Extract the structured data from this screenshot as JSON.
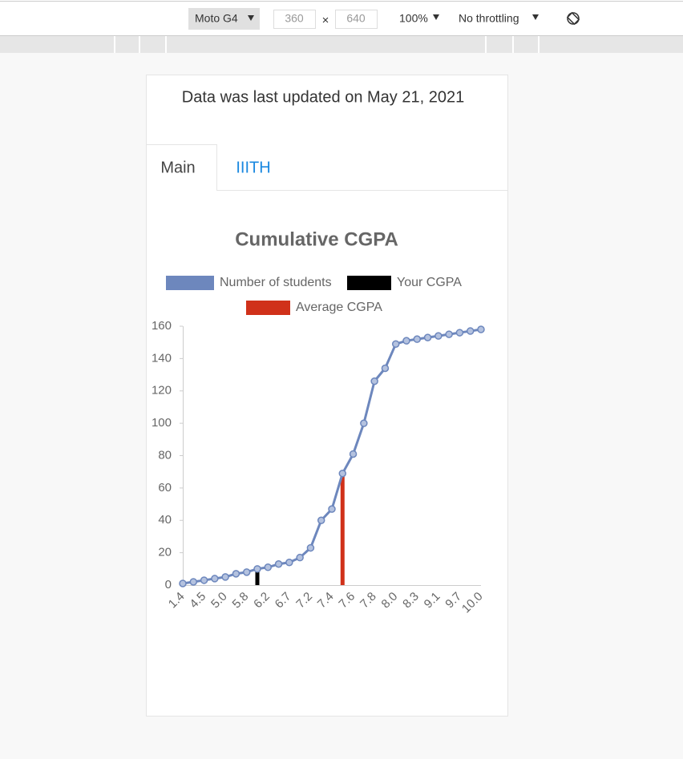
{
  "toolbar": {
    "device": "Moto G4",
    "width": "360",
    "times": "×",
    "height": "640",
    "zoom": "100%",
    "throttling": "No throttling"
  },
  "header": "Data was last updated on May 21, 2021",
  "tabs": [
    "Main",
    "IIITH"
  ],
  "chart_data": {
    "type": "line",
    "title": "Cumulative CGPA",
    "categories": [
      "1.4",
      null,
      "4.5",
      null,
      "5.0",
      null,
      "5.8",
      null,
      "6.2",
      null,
      "6.7",
      null,
      "7.2",
      null,
      "7.4",
      null,
      "7.6",
      null,
      "7.8",
      null,
      "8.0",
      null,
      "8.3",
      null,
      "9.1",
      null,
      "9.7",
      null,
      "10.0"
    ],
    "series": [
      {
        "name": "Number of students",
        "color": "#6d87bd",
        "type": "line",
        "values": [
          1,
          2,
          3,
          4,
          5,
          7,
          8,
          10,
          11,
          13,
          14,
          17,
          23,
          40,
          47,
          69,
          81,
          100,
          126,
          134,
          149,
          151,
          152,
          153,
          154,
          155,
          156,
          157,
          158
        ]
      },
      {
        "name": "Your CGPA",
        "color": "#000000",
        "type": "bar",
        "values": [
          null,
          null,
          null,
          null,
          null,
          null,
          null,
          9,
          null,
          null,
          null,
          null,
          null,
          null,
          null,
          null,
          null,
          null,
          null,
          null,
          null,
          null,
          null,
          null,
          null,
          null,
          null,
          null,
          null
        ]
      },
      {
        "name": "Average CGPA",
        "color": "#d0311a",
        "type": "bar",
        "values": [
          null,
          null,
          null,
          null,
          null,
          null,
          null,
          null,
          null,
          null,
          null,
          null,
          null,
          null,
          null,
          69,
          null,
          null,
          null,
          null,
          null,
          null,
          null,
          null,
          null,
          null,
          null,
          null,
          null
        ]
      }
    ],
    "ylim": [
      0,
      160
    ],
    "yticks": [
      0,
      20,
      40,
      60,
      80,
      100,
      120,
      140,
      160
    ],
    "grid": false
  }
}
